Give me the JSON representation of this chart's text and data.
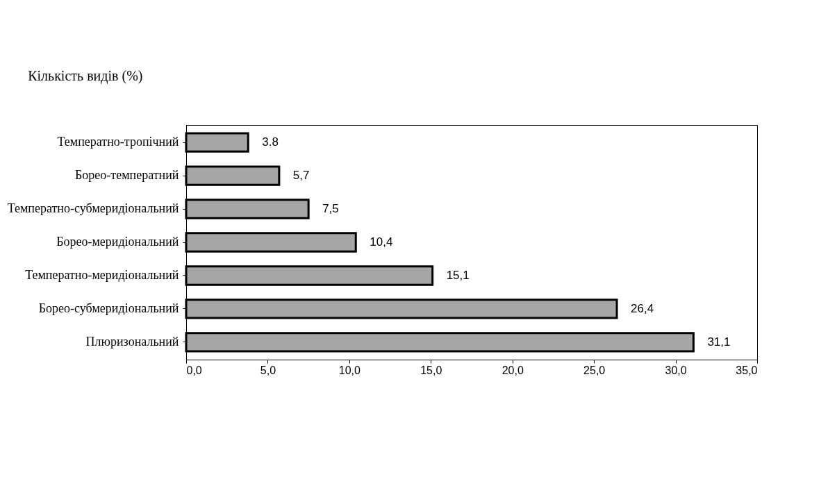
{
  "chart_data": {
    "type": "bar",
    "orientation": "horizontal",
    "title": "Кількість видів (%)",
    "categories": [
      "Температно-тропічний",
      "Борео-температний",
      "Температно-субмеридіональний",
      "Борео-меридіональний",
      "Температно-меридіональний",
      "Борео-субмеридіональний",
      "Плюризональний"
    ],
    "values": [
      3.8,
      5.7,
      7.5,
      10.4,
      15.1,
      26.4,
      31.1
    ],
    "value_labels": [
      "3.8",
      "5,7",
      "7,5",
      "10,4",
      "15,1",
      "26,4",
      "31,1"
    ],
    "color": "#a6a6a6",
    "xlim": [
      0,
      35
    ],
    "xticks": [
      {
        "value": 0,
        "label": "0,0"
      },
      {
        "value": 5,
        "label": "5,0"
      },
      {
        "value": 10,
        "label": "10,0"
      },
      {
        "value": 15,
        "label": "15,0"
      },
      {
        "value": 20,
        "label": "20,0"
      },
      {
        "value": 25,
        "label": "25,0"
      },
      {
        "value": 30,
        "label": "30,0"
      },
      {
        "value": 35,
        "label": "35,0"
      }
    ],
    "grid": false
  }
}
